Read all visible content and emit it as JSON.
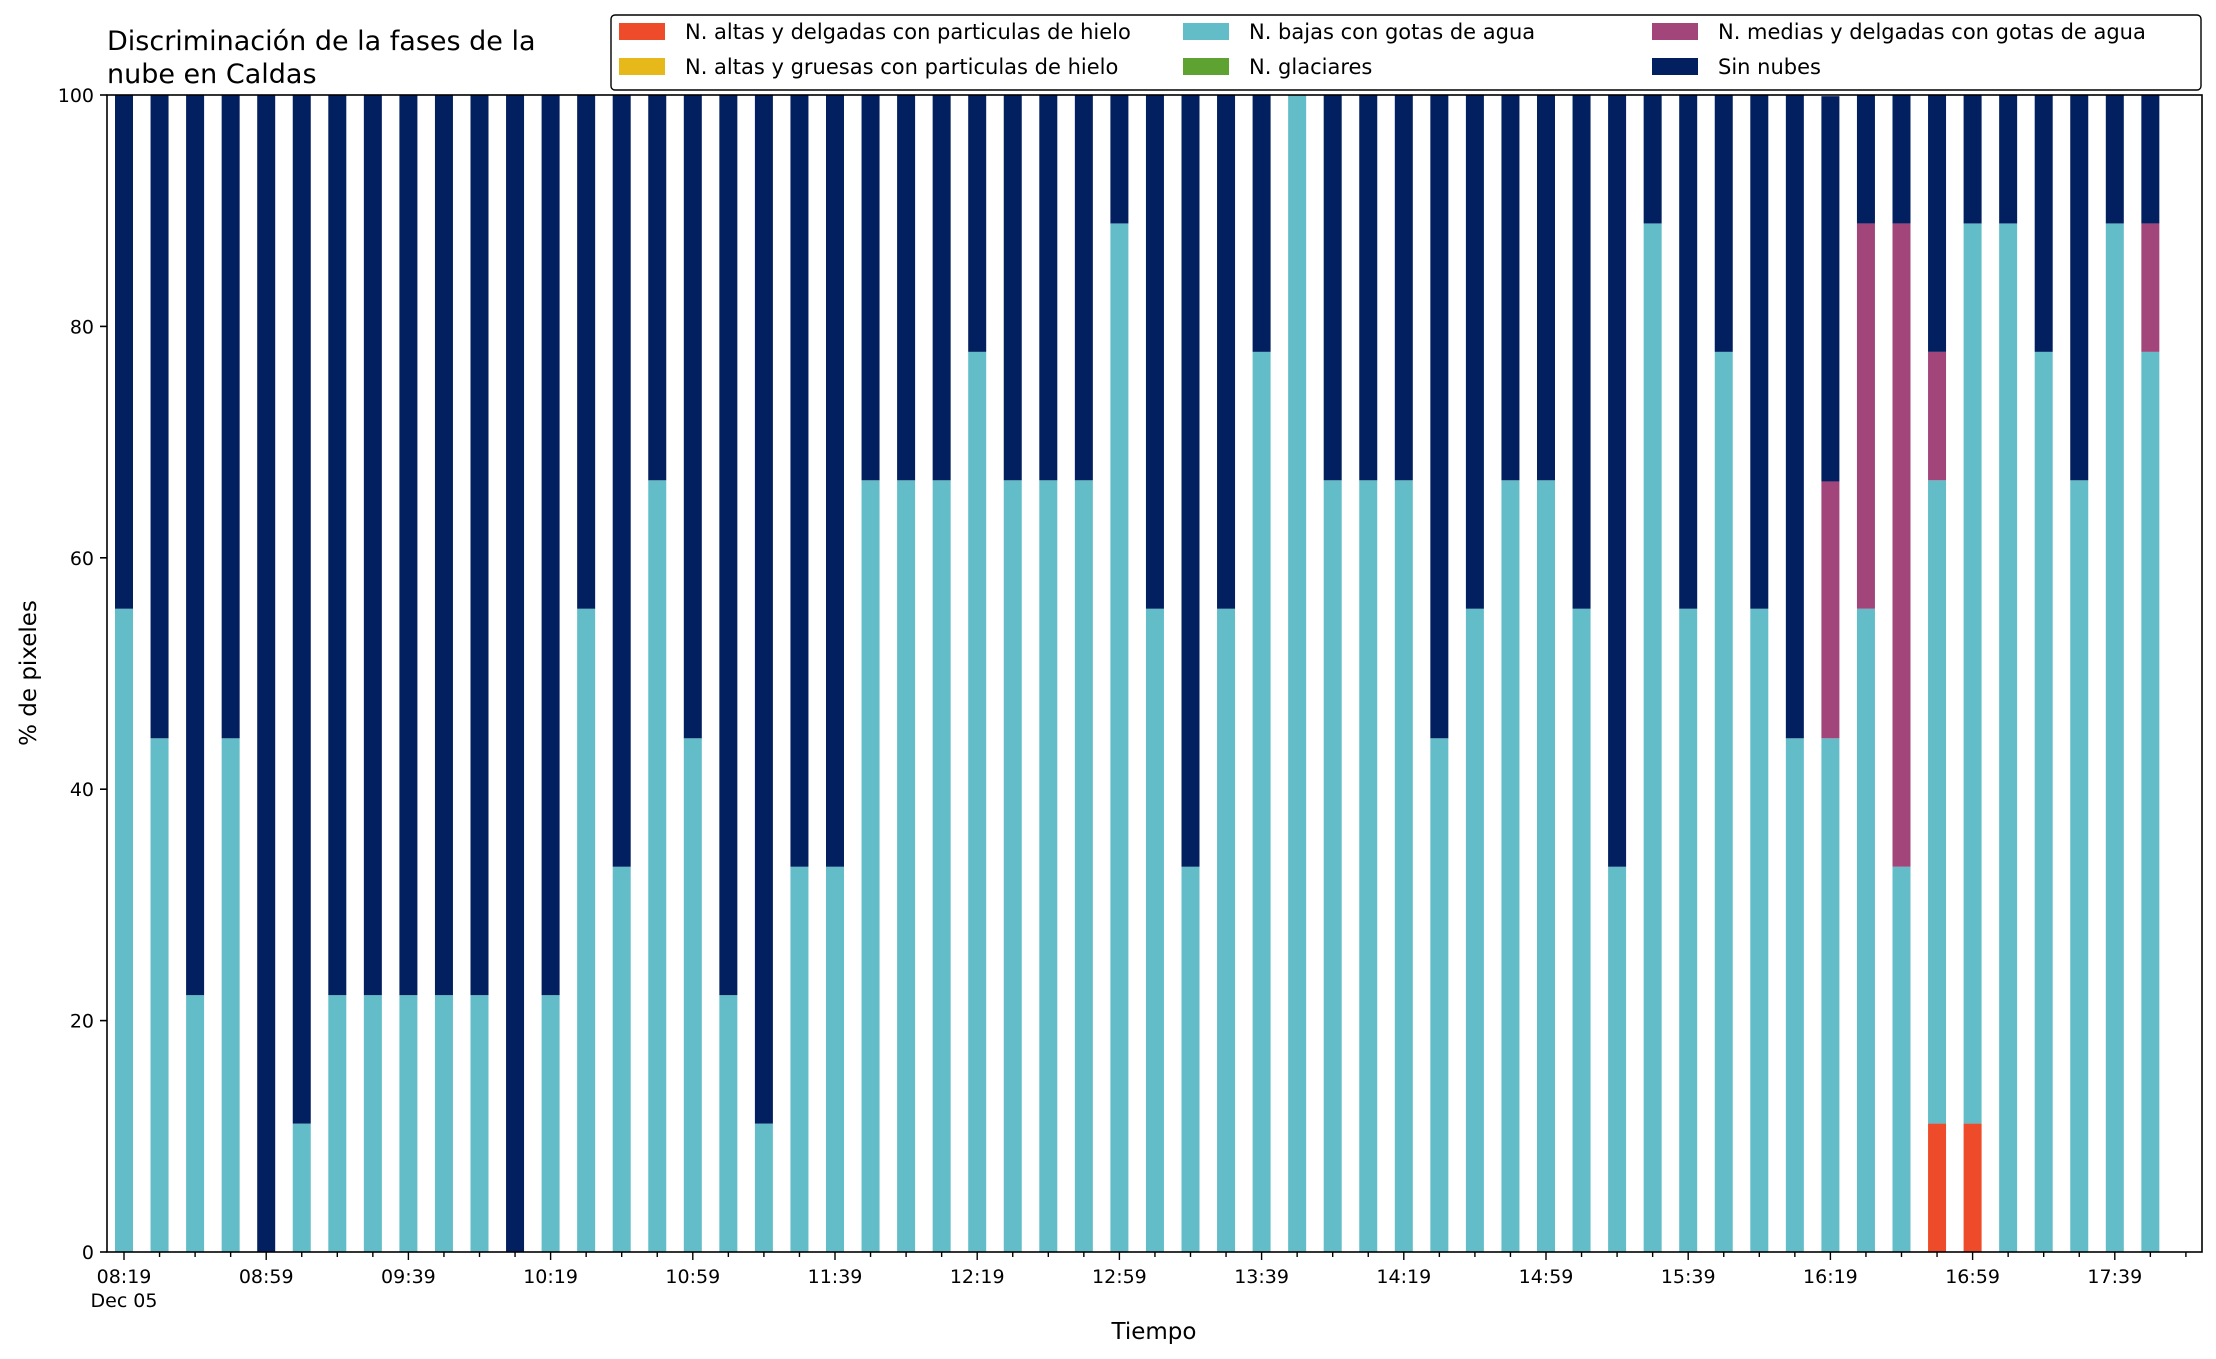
{
  "chart_data": {
    "type": "bar",
    "stacked": true,
    "title": "Discriminación de la fases de la\nnube en Caldas",
    "xlabel": "Tiempo",
    "ylabel": "% de pixeles",
    "ylim": [
      0,
      100
    ],
    "yticks": [
      0,
      20,
      40,
      60,
      80,
      100
    ],
    "grid": false,
    "legend_position": "top-right",
    "x_tick_labels": [
      "08:19",
      "08:59",
      "09:39",
      "10:19",
      "10:59",
      "11:39",
      "12:19",
      "12:59",
      "13:39",
      "14:19",
      "14:59",
      "15:39",
      "16:19",
      "16:59",
      "17:39"
    ],
    "x_date_label": "Dec 05",
    "categories": [
      "08:19",
      "08:29",
      "08:39",
      "08:49",
      "08:59",
      "09:09",
      "09:19",
      "09:29",
      "09:39",
      "09:49",
      "09:59",
      "10:09",
      "10:19",
      "10:29",
      "10:39",
      "10:49",
      "10:59",
      "11:09",
      "11:19",
      "11:29",
      "11:39",
      "11:49",
      "11:59",
      "12:09",
      "12:19",
      "12:29",
      "12:39",
      "12:49",
      "12:59",
      "13:09",
      "13:19",
      "13:29",
      "13:39",
      "13:49",
      "13:59",
      "14:09",
      "14:19",
      "14:29",
      "14:39",
      "14:49",
      "14:59",
      "15:09",
      "15:19",
      "15:29",
      "15:39",
      "15:49",
      "15:59",
      "16:09",
      "16:19",
      "16:29",
      "16:39",
      "16:49",
      "16:59",
      "17:09",
      "17:19",
      "17:29",
      "17:39",
      "17:49"
    ],
    "series": [
      {
        "name": "N. altas y delgadas con particulas de hielo",
        "color": "#ee4b2b",
        "values": [
          0,
          0,
          0,
          0,
          0,
          0,
          0,
          0,
          0,
          0,
          0,
          0,
          0,
          0,
          0,
          0,
          0,
          0,
          0,
          0,
          0,
          0,
          0,
          0,
          0,
          0,
          0,
          0,
          0,
          0,
          0,
          0,
          0,
          0,
          0,
          0,
          0,
          0,
          0,
          0,
          0,
          0,
          0,
          0,
          0,
          0,
          0,
          0,
          0,
          0,
          0,
          11.1,
          11.1,
          0,
          0,
          0,
          0,
          0
        ]
      },
      {
        "name": "N. altas y gruesas con particulas de hielo",
        "color": "#e6b81a",
        "values": [
          0,
          0,
          0,
          0,
          0,
          0,
          0,
          0,
          0,
          0,
          0,
          0,
          0,
          0,
          0,
          0,
          0,
          0,
          0,
          0,
          0,
          0,
          0,
          0,
          0,
          0,
          0,
          0,
          0,
          0,
          0,
          0,
          0,
          0,
          0,
          0,
          0,
          0,
          0,
          0,
          0,
          0,
          0,
          0,
          0,
          0,
          0,
          0,
          0,
          0,
          0,
          0,
          0,
          0,
          0,
          0,
          0,
          0
        ]
      },
      {
        "name": "N. bajas con gotas de agua",
        "color": "#63bdc8",
        "values": [
          55.6,
          44.4,
          22.2,
          44.4,
          0,
          11.1,
          22.2,
          22.2,
          22.2,
          22.2,
          22.2,
          0,
          22.2,
          55.6,
          33.3,
          66.7,
          44.4,
          22.2,
          11.1,
          33.3,
          33.3,
          66.7,
          66.7,
          66.7,
          77.8,
          66.7,
          66.7,
          66.7,
          88.9,
          55.6,
          33.3,
          55.6,
          77.8,
          100,
          66.7,
          66.7,
          66.7,
          44.4,
          55.6,
          66.7,
          66.7,
          55.6,
          33.3,
          88.9,
          55.6,
          77.8,
          55.6,
          44.4,
          44.4,
          55.6,
          33.3,
          55.6,
          77.8,
          88.9,
          77.8,
          66.7,
          88.9,
          77.8
        ]
      },
      {
        "name": "N. glaciares",
        "color": "#5ea332",
        "values": [
          0,
          0,
          0,
          0,
          0,
          0,
          0,
          0,
          0,
          0,
          0,
          0,
          0,
          0,
          0,
          0,
          0,
          0,
          0,
          0,
          0,
          0,
          0,
          0,
          0,
          0,
          0,
          0,
          0,
          0,
          0,
          0,
          0,
          0,
          0,
          0,
          0,
          0,
          0,
          0,
          0,
          0,
          0,
          0,
          0,
          0,
          0,
          0,
          0,
          0,
          0,
          0,
          0,
          0,
          0,
          0,
          0,
          0
        ]
      },
      {
        "name": "N. medias y delgadas con gotas de agua",
        "color": "#a2457a",
        "values": [
          0,
          0,
          0,
          0,
          0,
          0,
          0,
          0,
          0,
          0,
          0,
          0,
          0,
          0,
          0,
          0,
          0,
          0,
          0,
          0,
          0,
          0,
          0,
          0,
          0,
          0,
          0,
          0,
          0,
          0,
          0,
          0,
          0,
          0,
          0,
          0,
          0,
          0,
          0,
          0,
          0,
          0,
          0,
          0,
          0,
          0,
          0,
          0,
          22.2,
          33.3,
          55.6,
          11.1,
          0,
          0,
          0,
          0,
          0,
          11.1
        ]
      },
      {
        "name": "Sin nubes",
        "color": "#021f5f",
        "values": [
          44.4,
          55.6,
          77.8,
          55.6,
          100,
          88.9,
          77.8,
          77.8,
          77.8,
          77.8,
          77.8,
          100,
          77.8,
          44.4,
          66.7,
          33.3,
          55.6,
          77.8,
          88.9,
          66.7,
          66.7,
          33.3,
          33.3,
          33.3,
          22.2,
          33.3,
          33.3,
          33.3,
          11.1,
          44.4,
          66.7,
          44.4,
          22.2,
          0,
          33.3,
          33.3,
          33.3,
          55.6,
          44.4,
          33.3,
          33.3,
          44.4,
          66.7,
          11.1,
          44.4,
          22.2,
          44.4,
          55.6,
          33.3,
          11.1,
          11.1,
          22.2,
          11.1,
          11.1,
          22.2,
          33.3,
          11.1,
          11.1
        ]
      }
    ]
  }
}
